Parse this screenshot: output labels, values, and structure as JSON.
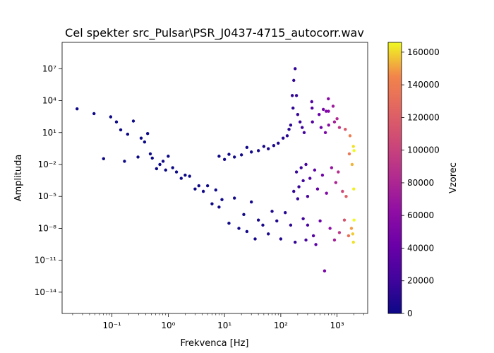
{
  "chart_data": {
    "type": "scatter",
    "title": "Cel spekter src_Pulsar\\PSR_J0437-4715_autocorr.wav",
    "xlabel": "Frekvenca [Hz]",
    "ylabel": "Amplituda",
    "x_scale": "log",
    "y_scale": "log",
    "xlim": [
      0.013,
      3500
    ],
    "ylim": [
      1e-16,
      3000000000.0
    ],
    "x_ticks": [
      0.1,
      1,
      10,
      100,
      1000
    ],
    "x_tick_labels": [
      "10⁻¹",
      "10⁰",
      "10¹",
      "10²",
      "10³"
    ],
    "y_ticks": [
      1e-14,
      1e-11,
      1e-08,
      1e-05,
      0.01,
      10,
      10000,
      10000000
    ],
    "y_tick_labels": [
      "10⁻¹⁴",
      "10⁻¹¹",
      "10⁻⁸",
      "10⁻⁵",
      "10⁻²",
      "10¹",
      "10⁴",
      "10⁷"
    ],
    "colorbar": {
      "label": "Vzorec",
      "colormap": "plasma",
      "range": [
        0,
        166000
      ],
      "ticks": [
        0,
        20000,
        40000,
        60000,
        80000,
        100000,
        120000,
        140000,
        160000
      ],
      "tick_labels": [
        "0",
        "20000",
        "40000",
        "60000",
        "80000",
        "100000",
        "120000",
        "140000",
        "160000"
      ]
    },
    "series": [
      {
        "points_xy": [
          [
            0.024,
            1700
          ],
          [
            0.048,
            600
          ],
          [
            0.071,
            0.035
          ],
          [
            0.095,
            300
          ],
          [
            0.12,
            100
          ],
          [
            0.143,
            18
          ],
          [
            0.167,
            0.02
          ],
          [
            0.19,
            7
          ],
          [
            0.24,
            120
          ],
          [
            0.29,
            0.05
          ],
          [
            0.33,
            3
          ],
          [
            0.38,
            1.3
          ],
          [
            0.43,
            8
          ],
          [
            0.48,
            0.1
          ],
          [
            0.52,
            0.04
          ],
          [
            0.62,
            0.004
          ],
          [
            0.71,
            0.01
          ],
          [
            0.81,
            0.02
          ],
          [
            0.9,
            0.003
          ],
          [
            1.0,
            0.06
          ],
          [
            1.2,
            0.005
          ],
          [
            1.4,
            0.002
          ],
          [
            1.7,
            0.0005
          ],
          [
            2.0,
            0.001
          ],
          [
            2.4,
            0.0008
          ],
          [
            3,
            5e-05
          ],
          [
            3.5,
            0.0001
          ],
          [
            4.2,
            3e-05
          ],
          [
            5,
            0.0001
          ],
          [
            6,
            2e-06
          ],
          [
            7,
            4e-05
          ],
          [
            8,
            1e-06
          ],
          [
            9,
            5e-06
          ],
          [
            12,
            3e-08
          ],
          [
            15,
            7e-06
          ],
          [
            18,
            1e-08
          ],
          [
            22,
            2e-07
          ],
          [
            25,
            5e-09
          ],
          [
            30,
            3e-06
          ],
          [
            35,
            1e-09
          ],
          [
            40,
            6e-08
          ],
          [
            48,
            2e-08
          ],
          [
            60,
            3e-09
          ],
          [
            70,
            4e-07
          ],
          [
            85,
            5e-08
          ],
          [
            100,
            1e-09
          ],
          [
            120,
            3e-07
          ],
          [
            150,
            2e-08
          ],
          [
            180,
            5e-10
          ],
          [
            200,
            6e-06
          ],
          [
            180,
            10000000
          ],
          [
            170,
            800000
          ],
          [
            160,
            30000
          ],
          [
            165,
            2000
          ],
          [
            190,
            30000
          ],
          [
            200,
            500
          ],
          [
            220,
            100
          ],
          [
            240,
            30
          ],
          [
            260,
            10
          ],
          [
            150,
            50
          ],
          [
            140,
            20
          ],
          [
            130,
            5
          ],
          [
            110,
            3
          ],
          [
            90,
            1
          ],
          [
            75,
            0.6
          ],
          [
            60,
            0.3
          ],
          [
            50,
            0.5
          ],
          [
            40,
            0.2
          ],
          [
            30,
            0.15
          ],
          [
            25,
            0.4
          ],
          [
            20,
            0.08
          ],
          [
            15,
            0.05
          ],
          [
            12,
            0.09
          ],
          [
            10,
            0.03
          ],
          [
            8,
            0.06
          ],
          [
            355,
            8000
          ],
          [
            360,
            2000
          ],
          [
            365,
            100
          ],
          [
            700,
            15000
          ],
          [
            705,
            1000
          ],
          [
            710,
            50
          ],
          [
            480,
            500
          ],
          [
            520,
            30
          ],
          [
            570,
            1500
          ],
          [
            620,
            10
          ],
          [
            640,
            1000
          ],
          [
            850,
            3000
          ],
          [
            900,
            100
          ],
          [
            1000,
            200
          ],
          [
            1100,
            30
          ],
          [
            1400,
            20
          ],
          [
            1700,
            5
          ],
          [
            1950,
            0.5
          ],
          [
            1900,
            3e-09
          ],
          [
            1950,
            5e-10
          ],
          [
            1800,
            1e-08
          ],
          [
            1600,
            2e-09
          ],
          [
            1350,
            6e-08
          ],
          [
            1100,
            4e-09
          ],
          [
            900,
            8e-10
          ],
          [
            750,
            1e-08
          ],
          [
            600,
            1e-12
          ],
          [
            500,
            5e-08
          ],
          [
            420,
            3e-10
          ],
          [
            380,
            2e-09
          ],
          [
            300,
            2e-08
          ],
          [
            280,
            8e-10
          ],
          [
            250,
            8e-08
          ],
          [
            2000,
            6e-08
          ],
          [
            2000,
            0.2
          ],
          [
            1980,
            5e-05
          ],
          [
            1850,
            0.01
          ],
          [
            1650,
            0.1
          ],
          [
            1450,
            1e-05
          ],
          [
            1250,
            3e-05
          ],
          [
            1050,
            0.002
          ],
          [
            950,
            0.0002
          ],
          [
            800,
            0.005
          ],
          [
            650,
            2e-05
          ],
          [
            550,
            0.001
          ],
          [
            450,
            5e-05
          ],
          [
            400,
            0.003
          ],
          [
            330,
            0.0005
          ],
          [
            300,
            1e-05
          ],
          [
            280,
            0.01
          ],
          [
            250,
            0.0003
          ],
          [
            230,
            0.005
          ],
          [
            210,
            8e-05
          ],
          [
            190,
            0.002
          ],
          [
            170,
            3e-05
          ]
        ]
      }
    ]
  }
}
